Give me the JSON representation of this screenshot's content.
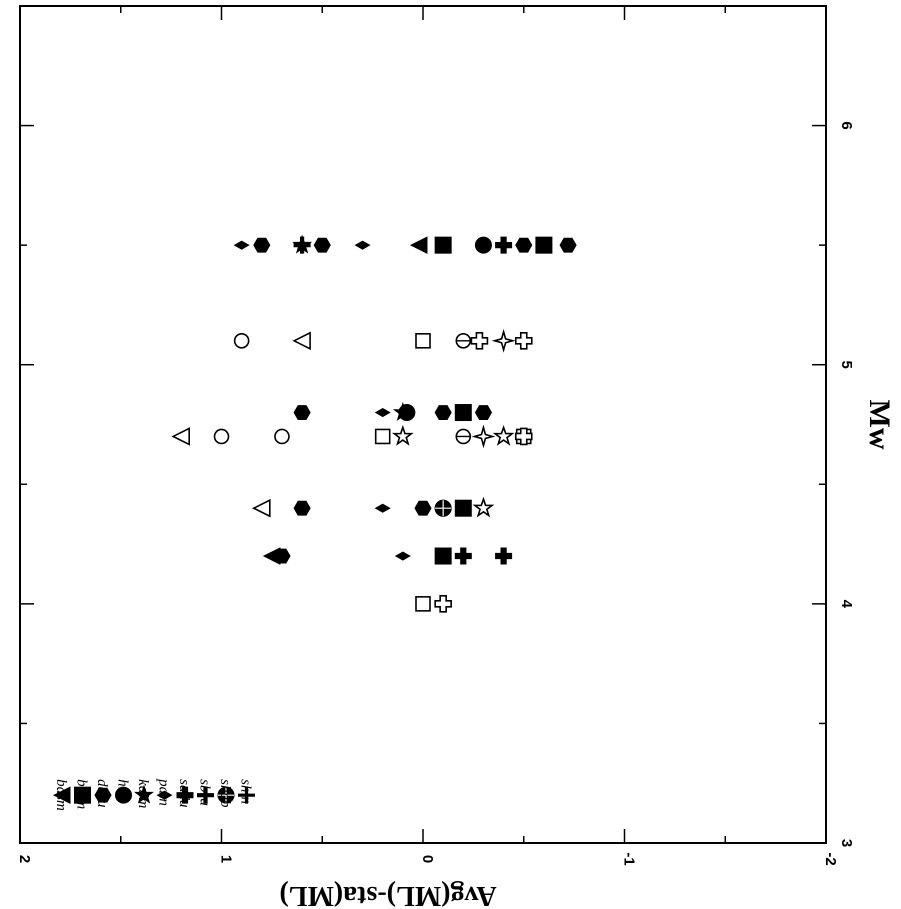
{
  "chart_data": {
    "type": "scatter",
    "xlabel": "Mw",
    "ylabel": "Avg(ML)-sta(ML)",
    "xlim": [
      3,
      6.5
    ],
    "ylim": [
      -2,
      2
    ],
    "x_ticks": [
      "3",
      "4",
      "5",
      "6"
    ],
    "y_ticks": [
      "2",
      "1",
      "0",
      "-1",
      "-2"
    ],
    "legend_placement": "lower-left",
    "series": [
      {
        "name": "basm",
        "marker": "triangle-filled",
        "points": [
          [
            5.5,
            0.02
          ],
          [
            4.2,
            0.75
          ]
        ]
      },
      {
        "name": "btgm",
        "marker": "square-filled",
        "points": [
          [
            5.5,
            -0.6
          ],
          [
            5.5,
            -0.1
          ],
          [
            4.8,
            -0.2
          ],
          [
            4.4,
            -0.2
          ],
          [
            4.2,
            -0.1
          ]
        ]
      },
      {
        "name": "dasu",
        "marker": "hexagon-filled",
        "points": [
          [
            5.5,
            -0.72
          ],
          [
            5.5,
            -0.5
          ],
          [
            5.5,
            0.5
          ],
          [
            5.5,
            0.8
          ],
          [
            4.8,
            -0.3
          ],
          [
            4.8,
            -0.1
          ],
          [
            4.8,
            0.6
          ],
          [
            4.4,
            0.0
          ],
          [
            4.4,
            0.6
          ],
          [
            4.2,
            0.7
          ]
        ]
      },
      {
        "name": "hlkt",
        "marker": "circle-filled",
        "points": [
          [
            5.5,
            -0.3
          ],
          [
            4.8,
            0.08
          ],
          [
            4.4,
            -0.1
          ]
        ]
      },
      {
        "name": "kalm",
        "marker": "star-filled",
        "points": [
          [
            5.5,
            0.6
          ],
          [
            4.8,
            0.1
          ]
        ]
      },
      {
        "name": "patn",
        "marker": "diamond-filled",
        "points": [
          [
            5.5,
            0.9
          ],
          [
            5.5,
            0.3
          ],
          [
            4.8,
            0.2
          ],
          [
            4.4,
            0.2
          ],
          [
            4.2,
            0.1
          ]
        ]
      },
      {
        "name": "sadu",
        "marker": "plus-filled",
        "points": [
          [
            5.5,
            -0.4
          ],
          [
            4.2,
            -0.2
          ],
          [
            4.2,
            -0.4
          ]
        ]
      },
      {
        "name": "sbra",
        "marker": "plus-thin",
        "points": [
          [
            5.5,
            0.6
          ]
        ]
      },
      {
        "name": "shab",
        "marker": "circle-cross",
        "points": [
          [
            4.4,
            -0.1
          ]
        ]
      },
      {
        "name": "shin",
        "marker": "cross-thin",
        "points": []
      },
      {
        "name": "",
        "marker": "triangle-open",
        "points": [
          [
            5.1,
            0.6
          ],
          [
            4.7,
            1.2
          ],
          [
            4.4,
            0.8
          ]
        ]
      },
      {
        "name": "",
        "marker": "square-open",
        "points": [
          [
            5.1,
            0.0
          ],
          [
            4.7,
            0.2
          ],
          [
            4.7,
            -0.5
          ],
          [
            4.0,
            0.0
          ]
        ]
      },
      {
        "name": "",
        "marker": "circle-open",
        "points": [
          [
            5.1,
            0.9
          ],
          [
            4.7,
            1.0
          ],
          [
            4.7,
            0.7
          ]
        ]
      },
      {
        "name": "",
        "marker": "circle-cross-open",
        "points": [
          [
            5.1,
            -0.2
          ],
          [
            4.7,
            -0.2
          ]
        ]
      },
      {
        "name": "",
        "marker": "plus-open",
        "points": [
          [
            5.1,
            -0.28
          ],
          [
            5.1,
            -0.5
          ],
          [
            4.7,
            -0.5
          ],
          [
            4.0,
            -0.1
          ]
        ]
      },
      {
        "name": "",
        "marker": "star4-open",
        "points": [
          [
            5.1,
            -0.4
          ],
          [
            4.7,
            -0.3
          ]
        ]
      },
      {
        "name": "",
        "marker": "star-open",
        "points": [
          [
            4.7,
            0.1
          ],
          [
            4.7,
            -0.4
          ],
          [
            4.4,
            -0.3
          ]
        ]
      }
    ]
  }
}
